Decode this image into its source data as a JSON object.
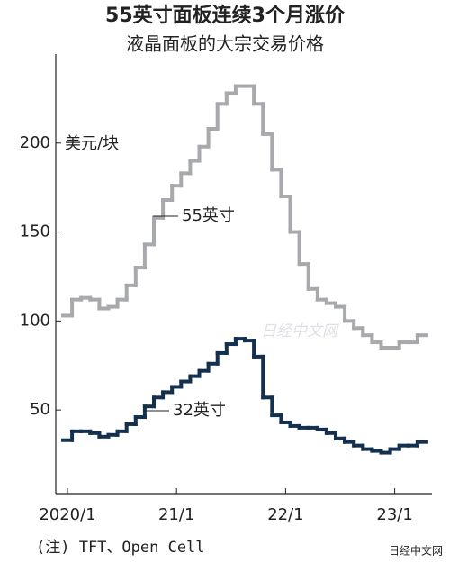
{
  "chart_data": {
    "type": "step",
    "title": "55英寸面板连续3个月涨价",
    "subtitle": "液晶面板的大宗交易价格",
    "y_label": "美元/块",
    "categories": [
      "2020/1",
      null,
      null,
      null,
      null,
      null,
      null,
      null,
      null,
      null,
      null,
      null,
      "21/1",
      null,
      null,
      null,
      null,
      null,
      null,
      null,
      null,
      null,
      null,
      null,
      "22/1",
      null,
      null,
      null,
      null,
      null,
      null,
      null,
      null,
      null,
      null,
      null,
      "23/1",
      null,
      null,
      null
    ],
    "series": [
      {
        "name": "55英寸",
        "color": "#a7a9ac",
        "values": [
          103,
          112,
          113,
          112,
          107,
          108,
          112,
          120,
          130,
          143,
          158,
          168,
          176,
          183,
          190,
          198,
          208,
          222,
          228,
          232,
          232,
          222,
          205,
          185,
          170,
          150,
          132,
          118,
          112,
          110,
          108,
          100,
          96,
          92,
          88,
          85,
          85,
          88,
          88,
          92
        ]
      },
      {
        "name": "32英寸",
        "color": "#14304f",
        "values": [
          33,
          38,
          38,
          37,
          35,
          36,
          38,
          42,
          46,
          52,
          57,
          60,
          63,
          66,
          69,
          72,
          76,
          82,
          87,
          90,
          89,
          80,
          57,
          47,
          43,
          41,
          40,
          40,
          39,
          37,
          34,
          32,
          30,
          28,
          27,
          26,
          28,
          30,
          30,
          32
        ]
      }
    ],
    "ylim": [
      3,
      250
    ],
    "yticks": [
      50,
      100,
      150,
      200
    ],
    "note": "(注) TFT、Open Cell",
    "watermark": "日经中文网",
    "source": "日经中文网"
  }
}
